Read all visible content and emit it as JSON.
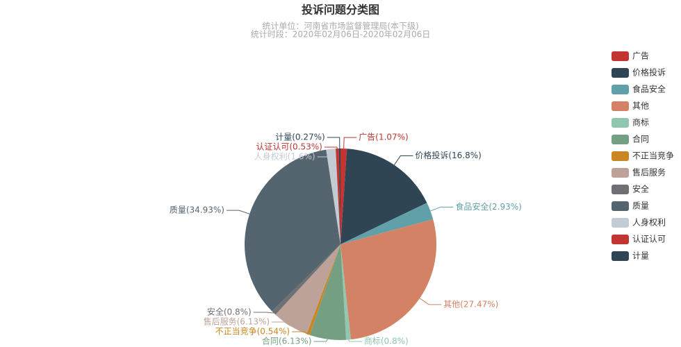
{
  "chart_data": {
    "type": "pie",
    "title": "投诉问题分类图",
    "subtitle": [
      "统计单位：河南省市场监督管理局(本下级)",
      "统计时段：2020年02月06日-2020年02月06日"
    ],
    "categories": [
      "广告",
      "价格投诉",
      "食品安全",
      "其他",
      "商标",
      "合同",
      "不正当竞争",
      "售后服务",
      "安全",
      "质量",
      "人身权利",
      "认证认可",
      "计量"
    ],
    "values": [
      1.07,
      16.8,
      2.93,
      27.47,
      0.8,
      6.13,
      0.54,
      6.13,
      0.8,
      34.93,
      1.6,
      0.53,
      0.27
    ],
    "value_labels": [
      "广告(1.07%)",
      "价格投诉(16.8%)",
      "食品安全(2.93%)",
      "其他(27.47%)",
      "商标(0.8%)",
      "合同(6.13%)",
      "不正当竞争(0.54%)",
      "售后服务(6.13%)",
      "安全(0.8%)",
      "质量(34.93%)",
      "人身权利(1.6%)",
      "认证认可(0.53%)",
      "计量(0.27%)"
    ],
    "colors": [
      "#c23531",
      "#2f4554",
      "#61a0a8",
      "#d48265",
      "#91c7ae",
      "#749f83",
      "#ca8622",
      "#bda29a",
      "#6e7074",
      "#546570",
      "#c4ccd3",
      "#c23531",
      "#2f4554"
    ],
    "legend": "right"
  }
}
